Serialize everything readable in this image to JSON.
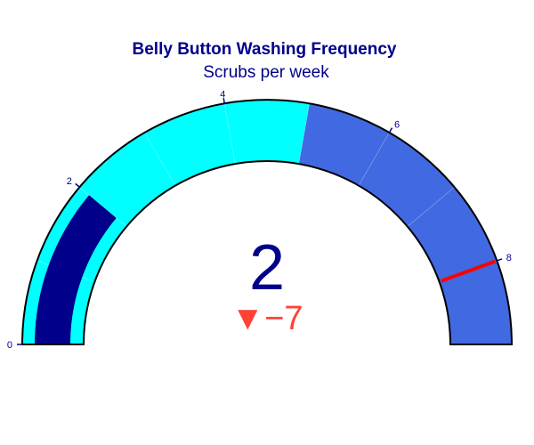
{
  "chart_data": {
    "type": "gauge",
    "title": "Belly Button Washing Frequency",
    "subtitle": "Scrubs per week",
    "value": 2,
    "delta": {
      "value": -7,
      "display": "▼−7",
      "color": "#ff4136"
    },
    "axis": {
      "range": [
        0,
        9
      ],
      "tickvals": [
        0,
        2,
        4,
        6,
        8
      ],
      "ticktext": [
        "0",
        "2",
        "4",
        "6",
        "8"
      ]
    },
    "bar": {
      "value": 2,
      "color": "#00008b"
    },
    "steps": [
      {
        "range": [
          0,
          1
        ],
        "color": "#00ffff"
      },
      {
        "range": [
          1,
          2
        ],
        "color": "#00ffff"
      },
      {
        "range": [
          2,
          3
        ],
        "color": "#00ffff"
      },
      {
        "range": [
          3,
          4
        ],
        "color": "#00ffff"
      },
      {
        "range": [
          4,
          5
        ],
        "color": "#00ffff"
      },
      {
        "range": [
          5,
          6
        ],
        "color": "#4169e1"
      },
      {
        "range": [
          6,
          7
        ],
        "color": "#4169e1"
      },
      {
        "range": [
          7,
          8
        ],
        "color": "#4169e1"
      },
      {
        "range": [
          8,
          9
        ],
        "color": "#4169e1"
      }
    ],
    "threshold": {
      "value": 8,
      "color": "#ff0000"
    },
    "colors": {
      "title": "#00008b",
      "value": "#00008b",
      "ticks": "#00008b",
      "border": "#000000"
    }
  }
}
